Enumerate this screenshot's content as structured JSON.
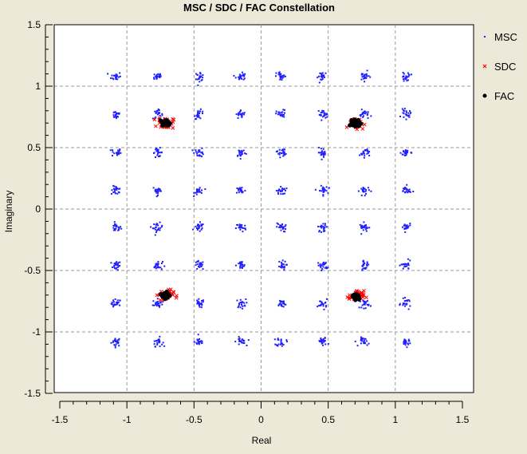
{
  "chart_data": {
    "type": "scatter",
    "title": "MSC / SDC / FAC Constellation",
    "xlabel": "Real",
    "ylabel": "Imaginary",
    "xlim": [
      -1.5,
      1.5
    ],
    "ylim": [
      -1.5,
      1.5
    ],
    "x_ticks": [
      "-1.5",
      "-1",
      "-0.5",
      "0",
      "0.5",
      "1",
      "1.5"
    ],
    "y_ticks": [
      "1.5",
      "1",
      "0.5",
      "0",
      "-0.5",
      "-1",
      "-1.5"
    ],
    "grid": true,
    "legend_position": "right",
    "series": [
      {
        "name": "MSC",
        "marker": "dot",
        "color": "#1f1fff",
        "grid_levels": [
          -1.08,
          -0.77,
          -0.46,
          -0.15,
          0.15,
          0.46,
          0.77,
          1.08
        ]
      },
      {
        "name": "SDC",
        "marker": "x",
        "color": "#ff0000",
        "points": [
          [
            -0.71,
            0.7
          ],
          [
            0.71,
            0.7
          ],
          [
            -0.71,
            -0.7
          ],
          [
            0.71,
            -0.71
          ]
        ]
      },
      {
        "name": "FAC",
        "marker": "dot",
        "color": "#000000",
        "points": [
          [
            -0.71,
            0.7
          ],
          [
            0.71,
            0.7
          ],
          [
            -0.71,
            -0.7
          ],
          [
            0.71,
            -0.71
          ]
        ]
      }
    ]
  }
}
